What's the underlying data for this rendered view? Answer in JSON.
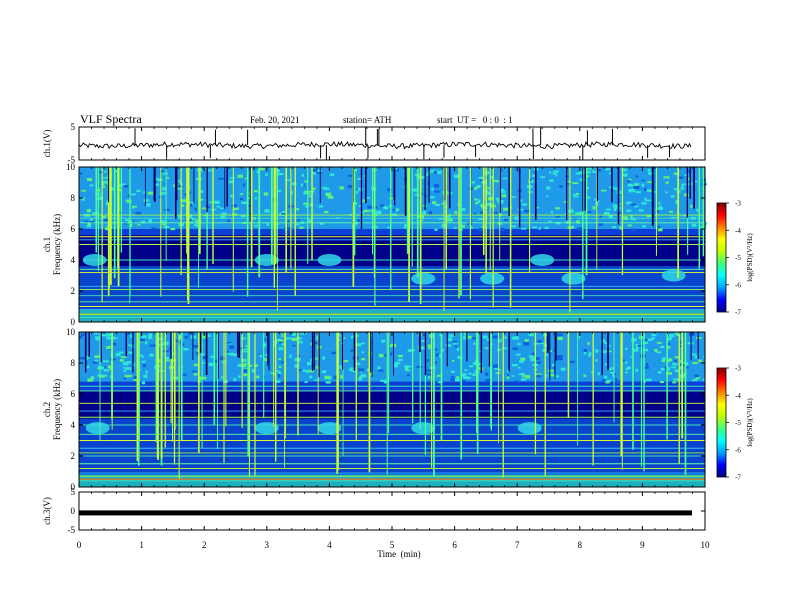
{
  "header": {
    "title": "VLF Spectra",
    "date": "Feb. 20, 2021",
    "station": "station= ATH",
    "start": "start  UT =   0 : 0  : 1"
  },
  "chart_data": {
    "type": "heatmap",
    "x_axis": {
      "label": "Time  (min)",
      "range": [
        0,
        10
      ],
      "ticks": [
        "0",
        "1",
        "2",
        "3",
        "4",
        "5",
        "6",
        "7",
        "8",
        "9",
        "10"
      ]
    },
    "panels": [
      {
        "id": "ch1-waveform",
        "type": "line",
        "ylabel": "ch.1(V)",
        "ylim": [
          -5,
          5
        ],
        "yticks": [
          "5",
          "-5"
        ],
        "baseline": -0.5
      },
      {
        "id": "ch1-spectrogram",
        "type": "heatmap",
        "ylabel_line1": "ch.1",
        "ylabel_line2": "Frequency  (kHz)",
        "ylim": [
          0,
          10
        ],
        "yticks": [
          "0",
          "2",
          "4",
          "6",
          "8",
          "10"
        ],
        "quiet_band_khz": [
          3.6,
          5.6
        ],
        "hiss_band_khz": [
          6.0,
          10.0
        ],
        "horizontal_lines_khz": [
          0.3,
          0.5,
          0.8,
          1.0,
          1.3,
          1.7,
          2.1,
          2.3,
          3.2,
          3.4,
          4.0,
          5.0,
          5.3,
          5.5,
          6.4,
          6.7,
          6.9
        ],
        "spots": [
          [
            0.25,
            4.0
          ],
          [
            3.0,
            4.0
          ],
          [
            4.0,
            4.0
          ],
          [
            5.5,
            2.8
          ],
          [
            6.6,
            2.8
          ],
          [
            7.9,
            2.8
          ],
          [
            9.5,
            3.0
          ],
          [
            7.4,
            4.0
          ]
        ]
      },
      {
        "id": "ch2-spectrogram",
        "type": "heatmap",
        "ylabel_line1": "ch.2",
        "ylabel_line2": "Frequency  (kHz)",
        "ylim": [
          0,
          10
        ],
        "yticks": [
          "0",
          "2",
          "4",
          "6",
          "8",
          "10"
        ],
        "quiet_band_khz": [
          4.4,
          6.2
        ],
        "hiss_band_khz": [
          6.8,
          10.0
        ],
        "horizontal_lines_khz": [
          0.4,
          0.7,
          0.9,
          1.2,
          1.5,
          2.0,
          2.2,
          2.5,
          3.0,
          3.4,
          4.0,
          4.5,
          4.9,
          5.4,
          6.2,
          6.5
        ],
        "spots": [
          [
            0.3,
            3.8
          ],
          [
            3.0,
            3.8
          ],
          [
            4.0,
            3.8
          ],
          [
            5.5,
            3.8
          ],
          [
            7.2,
            3.8
          ]
        ]
      },
      {
        "id": "ch3-waveform",
        "type": "line",
        "ylabel": "ch.3(V)",
        "ylim": [
          -5,
          5
        ],
        "yticks": [
          "5",
          "0",
          "-5"
        ],
        "baseline": -0.5
      }
    ],
    "colorbar": {
      "label": "log(PSD)(V²/Hz)",
      "range": [
        -7,
        -3
      ],
      "ticks": [
        "-3",
        "-4",
        "-5",
        "-6",
        "-7"
      ],
      "colormap": [
        "#000080",
        "#0000ff",
        "#00a0ff",
        "#00ffff",
        "#40ff80",
        "#c0ff00",
        "#ffff00",
        "#ff8000",
        "#ff0000",
        "#800000"
      ]
    }
  }
}
